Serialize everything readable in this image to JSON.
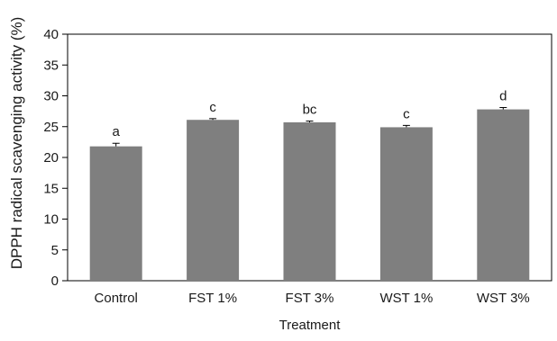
{
  "chart_data": {
    "type": "bar",
    "title": "",
    "xlabel": "Treatment",
    "ylabel": "DPPH radical scavenging activity (%)",
    "categories": [
      "Control",
      "FST 1%",
      "FST 3%",
      "WST 1%",
      "WST 3%"
    ],
    "values": [
      21.8,
      26.1,
      25.7,
      24.9,
      27.8
    ],
    "errors": [
      0.5,
      0.2,
      0.2,
      0.3,
      0.3
    ],
    "significance_labels": [
      "a",
      "c",
      "bc",
      "c",
      "d"
    ],
    "ylim": [
      0,
      40
    ],
    "yticks": [
      0,
      5,
      10,
      15,
      20,
      25,
      30,
      35,
      40
    ],
    "grid": false,
    "legend": "none",
    "bar_color": "#7f7f7f",
    "axis_color": "#000000"
  }
}
